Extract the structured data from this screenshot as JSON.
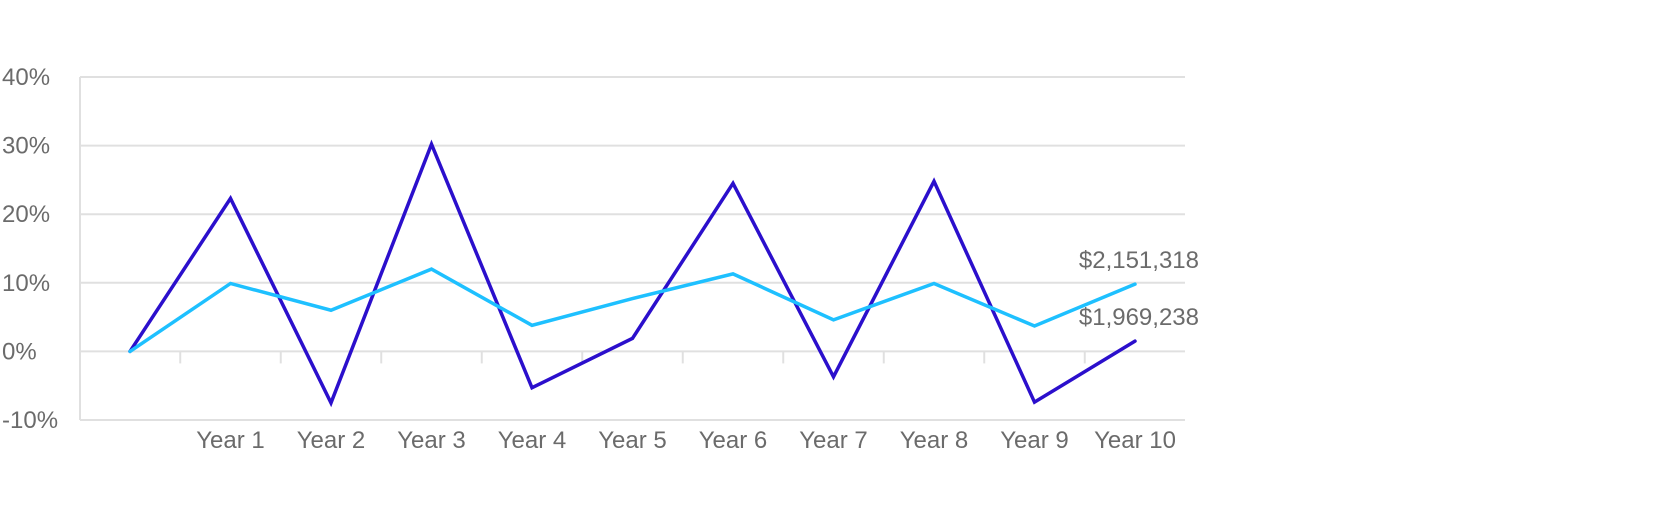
{
  "chart_data": {
    "type": "line",
    "title": "",
    "xlabel": "",
    "ylabel": "",
    "categories": [
      "",
      "Year 1",
      "Year 2",
      "Year 3",
      "Year 4",
      "Year 5",
      "Year 6",
      "Year 7",
      "Year 8",
      "Year 9",
      "Year 10"
    ],
    "y_ticks": [
      "40%",
      "30%",
      "20%",
      "10%",
      "0%",
      "-10%"
    ],
    "y_tick_values": [
      40,
      30,
      20,
      10,
      0,
      -10
    ],
    "ylim": [
      -10,
      40
    ],
    "grid": true,
    "series": [
      {
        "values": [
          0,
          22.3,
          -7.5,
          30.2,
          -5.3,
          1.9,
          24.5,
          -3.7,
          24.8,
          -7.4,
          1.5
        ],
        "color": "#2b0fcc",
        "end_label": "$1,969,238"
      },
      {
        "values": [
          0,
          9.9,
          6.0,
          12.0,
          3.8,
          7.7,
          11.3,
          4.6,
          9.9,
          3.7,
          9.8
        ],
        "color": "#1ec0ff",
        "end_label": "$2,151,318"
      }
    ]
  }
}
